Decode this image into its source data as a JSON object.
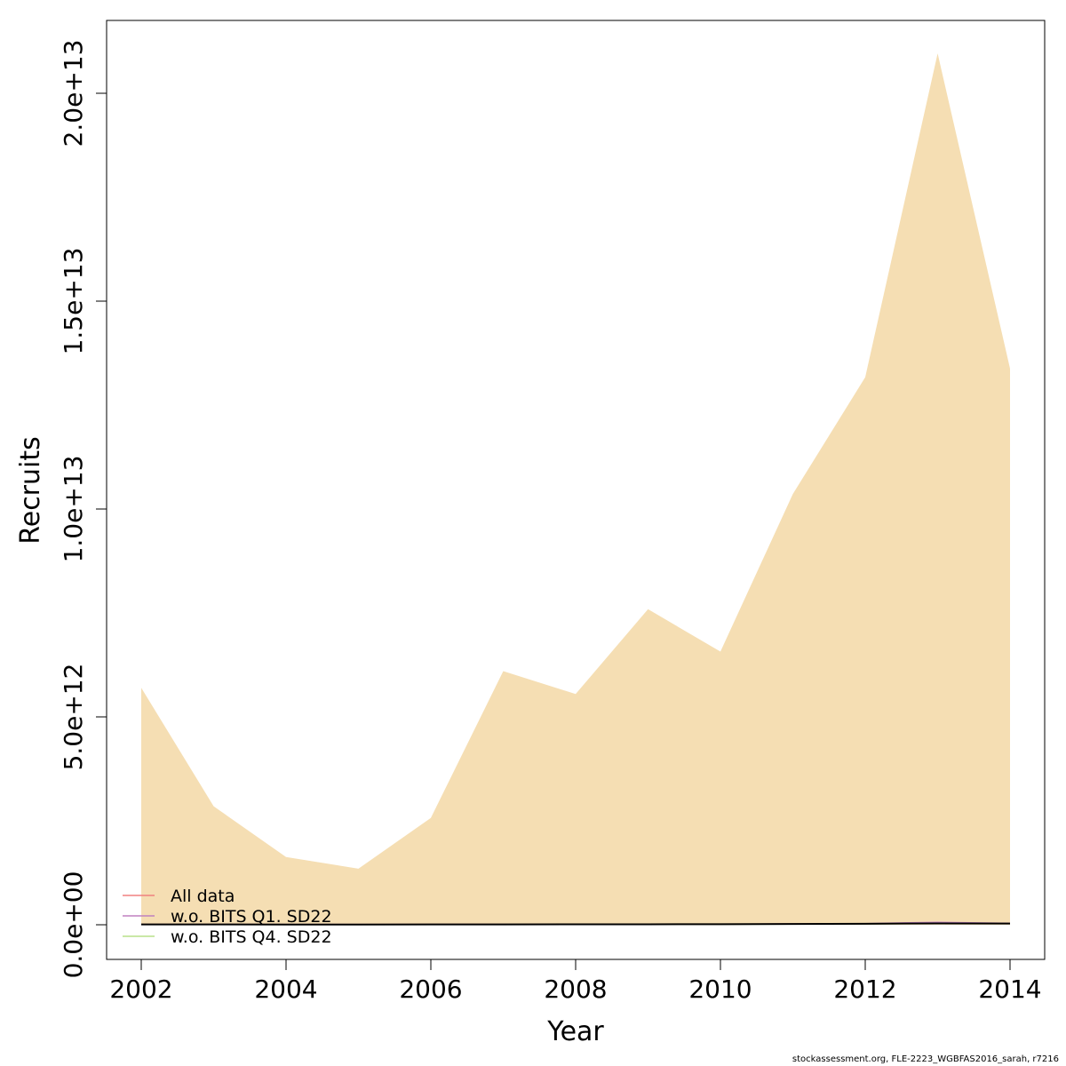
{
  "chart_data": {
    "type": "area",
    "title": "",
    "xlabel": "Year",
    "ylabel": "Recruits",
    "x": [
      2002,
      2003,
      2004,
      2005,
      2006,
      2007,
      2008,
      2009,
      2010,
      2011,
      2012,
      2013,
      2014
    ],
    "xlim": [
      2002,
      2014
    ],
    "ylim": [
      0,
      21000000000000
    ],
    "x_ticks": [
      2002,
      2004,
      2006,
      2008,
      2010,
      2012,
      2014
    ],
    "x_tick_labels": [
      "2002",
      "2004",
      "2006",
      "2008",
      "2010",
      "2012",
      "2014"
    ],
    "y_ticks": [
      0,
      5000000000000,
      10000000000000,
      15000000000000,
      20000000000000
    ],
    "y_tick_labels": [
      "0.0e+00",
      "5.0e+12",
      "1.0e+13",
      "1.5e+13",
      "2.0e+13"
    ],
    "band": {
      "color": "#f5deb3",
      "upper": [
        5700000000000,
        2850000000000,
        1630000000000,
        1350000000000,
        2570000000000,
        6100000000000,
        5550000000000,
        7590000000000,
        6570000000000,
        10360000000000,
        13170000000000,
        20960000000000,
        13380000000000
      ],
      "lower": [
        0,
        0,
        0,
        0,
        0,
        0,
        0,
        0,
        0,
        0,
        0,
        0,
        0
      ]
    },
    "series": [
      {
        "name": "All data",
        "color": "#f08080",
        "values": [
          8000000000,
          7000000000,
          6000000000,
          6000000000,
          7000000000,
          9000000000,
          10000000000,
          12000000000,
          13000000000,
          18000000000,
          25000000000,
          35000000000,
          30000000000
        ]
      },
      {
        "name": "w.o. BITS Q1. SD22",
        "color": "#c080c0",
        "values": [
          9000000000,
          8000000000,
          7000000000,
          7000000000,
          8000000000,
          10000000000,
          11000000000,
          13000000000,
          14000000000,
          20000000000,
          28000000000,
          60000000000,
          35000000000
        ]
      },
      {
        "name": "w.o. BITS Q4. SD22",
        "color": "#b8e08a",
        "values": [
          7000000000,
          6000000000,
          5000000000,
          5000000000,
          6000000000,
          8000000000,
          9000000000,
          11000000000,
          12000000000,
          16000000000,
          22000000000,
          30000000000,
          26000000000
        ]
      },
      {
        "name": "",
        "color": "#000000",
        "values": [
          8000000000,
          7000000000,
          6000000000,
          6000000000,
          7000000000,
          9000000000,
          10000000000,
          12000000000,
          13000000000,
          18000000000,
          25000000000,
          33000000000,
          29000000000
        ]
      }
    ],
    "legend": [
      "All data",
      "w.o. BITS Q1. SD22",
      "w.o. BITS Q4. SD22"
    ],
    "legend_placement": "bottom-left",
    "grid": false
  },
  "footer_text": "stockassessment.org, FLE-2223_WGBFAS2016_sarah, r7216"
}
